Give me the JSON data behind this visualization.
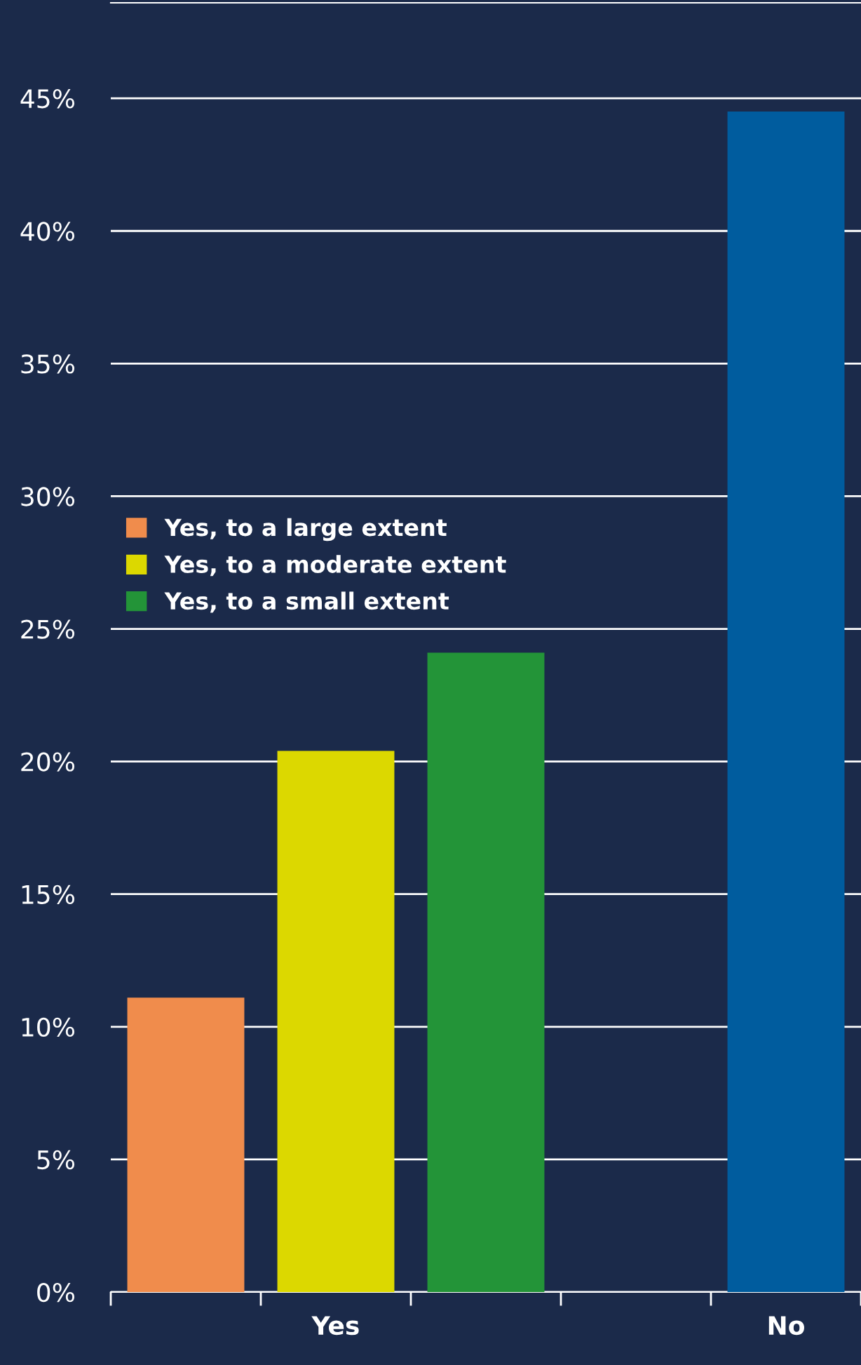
{
  "chart_data": {
    "type": "bar",
    "categories": [
      null,
      "Yes",
      null,
      null,
      "No"
    ],
    "series": [
      {
        "name": "Yes, to a large extent",
        "color": "#f08c4c",
        "values": [
          11.1,
          null,
          null,
          null,
          null
        ]
      },
      {
        "name": "Yes, to a moderate extent",
        "color": "#dcd800",
        "values": [
          null,
          20.4,
          null,
          null,
          null
        ]
      },
      {
        "name": "Yes, to a small extent",
        "color": "#239438",
        "values": [
          null,
          null,
          24.1,
          null,
          null
        ]
      },
      {
        "color": "#005c9e",
        "values": [
          null,
          null,
          null,
          null,
          44.5
        ]
      }
    ],
    "ylim": [
      0,
      48.6
    ],
    "yticks": [
      {
        "value": 0,
        "label": "0%"
      },
      {
        "value": 5,
        "label": "5%"
      },
      {
        "value": 10,
        "label": "10%"
      },
      {
        "value": 15,
        "label": "15%"
      },
      {
        "value": 20,
        "label": "20%"
      },
      {
        "value": 25,
        "label": "25%"
      },
      {
        "value": 30,
        "label": "30%"
      },
      {
        "value": 35,
        "label": "35%"
      },
      {
        "value": 40,
        "label": "40%"
      },
      {
        "value": 45,
        "label": "45%"
      }
    ],
    "grid": "y",
    "legend": "left"
  }
}
